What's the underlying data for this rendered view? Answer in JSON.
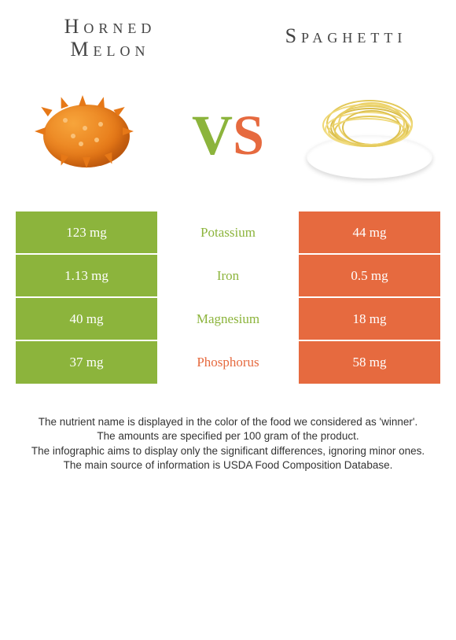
{
  "colors": {
    "left_food": "#8cb43c",
    "right_food": "#e66a3f",
    "text": "#444444",
    "footer_text": "#333333",
    "white": "#ffffff"
  },
  "foods": {
    "left": {
      "name": "Horned Melon",
      "display": "Horned\nMelon"
    },
    "right": {
      "name": "Spaghetti",
      "display": "Spaghetti"
    }
  },
  "vs": {
    "v": "V",
    "s": "S"
  },
  "nutrients": [
    {
      "name": "Potassium",
      "left": "123 mg",
      "right": "44 mg",
      "winner": "left"
    },
    {
      "name": "Iron",
      "left": "1.13 mg",
      "right": "0.5 mg",
      "winner": "left"
    },
    {
      "name": "Magnesium",
      "left": "40 mg",
      "right": "18 mg",
      "winner": "left"
    },
    {
      "name": "Phosphorus",
      "left": "37 mg",
      "right": "58 mg",
      "winner": "right"
    }
  ],
  "footer_lines": [
    "The nutrient name is displayed in the color of the food we considered as 'winner'.",
    "The amounts are specified per 100 gram of the product.",
    "The infographic aims to display only the significant differences, ignoring minor ones.",
    "The main source of information is USDA Food Composition Database."
  ]
}
